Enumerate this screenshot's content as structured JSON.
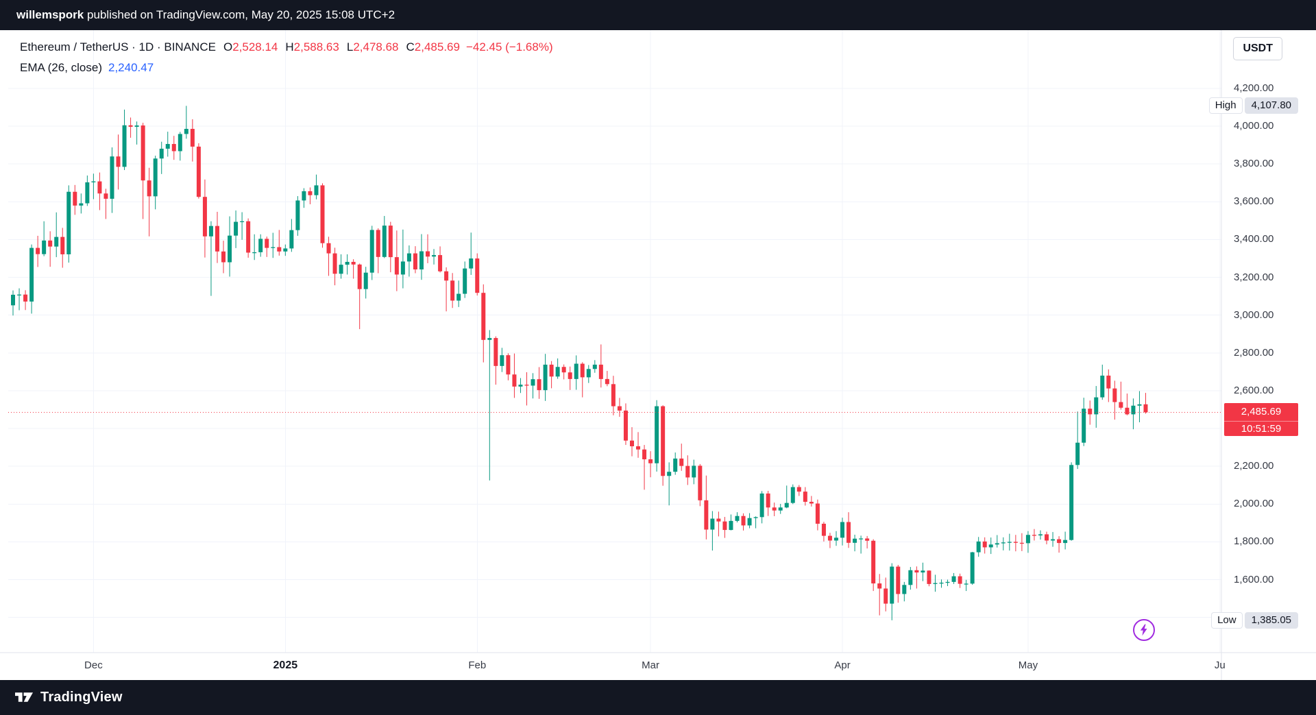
{
  "topbar": {
    "author": "willemspork",
    "rest": " published on TradingView.com, May 20, 2025 15:08 UTC+2"
  },
  "legend": {
    "title": "Ethereum / TetherUS · 1D · BINANCE",
    "ohlc": {
      "o_label": "O",
      "o": "2,528.14",
      "h_label": "H",
      "h": "2,588.63",
      "l_label": "L",
      "l": "2,478.68",
      "c_label": "C",
      "c": "2,485.69",
      "change": "−42.45 (−1.68%)"
    },
    "indicator": {
      "name": "EMA (26, close)",
      "value": "2,240.47"
    }
  },
  "currency_button": "USDT",
  "price_scale": {
    "ticks": [
      4200,
      4000,
      3800,
      3600,
      3400,
      3200,
      3000,
      2800,
      2600,
      2400,
      2200,
      2000,
      1800,
      1600,
      1400
    ],
    "hidden_tick_labels": [
      1400
    ],
    "high_label": "High",
    "high_value": "4,107.80",
    "low_label": "Low",
    "low_value": "1,385.05",
    "last_price": "2,485.69",
    "countdown": "10:51:59"
  },
  "time_scale": {
    "labels": [
      {
        "text": "Dec",
        "index": 13
      },
      {
        "text": "2025",
        "index": 44,
        "bold": true
      },
      {
        "text": "Feb",
        "index": 75
      },
      {
        "text": "Mar",
        "index": 103
      },
      {
        "text": "Apr",
        "index": 134
      },
      {
        "text": "May",
        "index": 164
      },
      {
        "text": "Ju",
        "index": 195
      }
    ]
  },
  "footer": {
    "brand": "TradingView"
  },
  "colors": {
    "up": "#089981",
    "down": "#f23645",
    "accent_blue": "#2962ff",
    "bar_bg": "#131722",
    "grid": "#f0f3fa",
    "separator": "#e0e3eb",
    "axis_text": "#363a45",
    "purple": "#a02be0"
  },
  "chart_data": {
    "type": "candlestick",
    "symbol": "Ethereum / TetherUS",
    "exchange": "BINANCE",
    "timeframe": "1D",
    "start_date": "2024-11-18",
    "end_date": "2025-05-20",
    "high": 4107.8,
    "low": 1385.05,
    "price_line": 2485.69,
    "last_ohlc": {
      "open": 2528.14,
      "high": 2588.63,
      "low": 2478.68,
      "close": 2485.69,
      "change": -42.45,
      "change_pct": -1.68
    },
    "ema_26": 2240.47,
    "y_axis_range": [
      1400,
      4200
    ],
    "grid": true,
    "ohlc": [
      [
        3052,
        3131,
        2998,
        3108
      ],
      [
        3108,
        3142,
        3026,
        3109
      ],
      [
        3109,
        3132,
        3027,
        3072
      ],
      [
        3072,
        3374,
        3008,
        3356
      ],
      [
        3356,
        3420,
        3255,
        3323
      ],
      [
        3323,
        3497,
        3312,
        3395
      ],
      [
        3395,
        3444,
        3256,
        3363
      ],
      [
        3363,
        3544,
        3307,
        3414
      ],
      [
        3414,
        3462,
        3251,
        3322
      ],
      [
        3322,
        3687,
        3278,
        3653
      ],
      [
        3653,
        3689,
        3531,
        3580
      ],
      [
        3580,
        3644,
        3538,
        3592
      ],
      [
        3592,
        3739,
        3578,
        3703
      ],
      [
        3703,
        3749,
        3614,
        3708
      ],
      [
        3708,
        3755,
        3556,
        3644
      ],
      [
        3644,
        3669,
        3509,
        3616
      ],
      [
        3616,
        3888,
        3541,
        3840
      ],
      [
        3840,
        3956,
        3665,
        3785
      ],
      [
        3785,
        4088,
        3768,
        4005
      ],
      [
        4005,
        4046,
        3939,
        3997
      ],
      [
        3997,
        4025,
        3903,
        4004
      ],
      [
        4004,
        4018,
        3509,
        3713
      ],
      [
        3713,
        3780,
        3417,
        3629
      ],
      [
        3629,
        3844,
        3560,
        3829
      ],
      [
        3829,
        3918,
        3747,
        3881
      ],
      [
        3881,
        3971,
        3839,
        3906
      ],
      [
        3906,
        3949,
        3822,
        3868
      ],
      [
        3868,
        3970,
        3818,
        3959
      ],
      [
        3959,
        4107.8,
        3934,
        3986
      ],
      [
        3986,
        4037,
        3813,
        3892
      ],
      [
        3892,
        3910,
        3617,
        3626
      ],
      [
        3626,
        3718,
        3305,
        3417
      ],
      [
        3417,
        3497,
        3102,
        3472
      ],
      [
        3472,
        3547,
        3276,
        3337
      ],
      [
        3337,
        3394,
        3222,
        3280
      ],
      [
        3280,
        3523,
        3204,
        3421
      ],
      [
        3421,
        3554,
        3355,
        3494
      ],
      [
        3494,
        3545,
        3399,
        3497
      ],
      [
        3497,
        3512,
        3304,
        3331
      ],
      [
        3331,
        3428,
        3292,
        3333
      ],
      [
        3333,
        3428,
        3309,
        3404
      ],
      [
        3404,
        3416,
        3308,
        3356
      ],
      [
        3356,
        3436,
        3303,
        3360
      ],
      [
        3360,
        3451,
        3315,
        3337
      ],
      [
        3337,
        3374,
        3314,
        3353
      ],
      [
        3353,
        3509,
        3335,
        3450
      ],
      [
        3450,
        3630,
        3420,
        3607
      ],
      [
        3607,
        3672,
        3568,
        3656
      ],
      [
        3656,
        3676,
        3587,
        3635
      ],
      [
        3635,
        3744,
        3613,
        3687
      ],
      [
        3687,
        3698,
        3357,
        3381
      ],
      [
        3381,
        3415,
        3208,
        3327
      ],
      [
        3327,
        3357,
        3158,
        3219
      ],
      [
        3219,
        3322,
        3193,
        3267
      ],
      [
        3267,
        3322,
        3215,
        3282
      ],
      [
        3282,
        3296,
        3193,
        3268
      ],
      [
        3268,
        3273,
        2926,
        3138
      ],
      [
        3138,
        3256,
        3088,
        3225
      ],
      [
        3225,
        3473,
        3186,
        3451
      ],
      [
        3451,
        3460,
        3222,
        3308
      ],
      [
        3308,
        3525,
        3302,
        3474
      ],
      [
        3474,
        3494,
        3227,
        3307
      ],
      [
        3307,
        3448,
        3127,
        3215
      ],
      [
        3215,
        3453,
        3142,
        3284
      ],
      [
        3284,
        3369,
        3204,
        3327
      ],
      [
        3327,
        3365,
        3222,
        3242
      ],
      [
        3242,
        3429,
        3187,
        3338
      ],
      [
        3338,
        3428,
        3275,
        3310
      ],
      [
        3310,
        3350,
        3268,
        3318
      ],
      [
        3318,
        3364,
        3226,
        3232
      ],
      [
        3232,
        3253,
        3020,
        3183
      ],
      [
        3183,
        3223,
        3038,
        3077
      ],
      [
        3077,
        3183,
        3043,
        3113
      ],
      [
        3113,
        3284,
        3091,
        3247
      ],
      [
        3247,
        3437,
        3213,
        3300
      ],
      [
        3300,
        3327,
        3104,
        3118
      ],
      [
        3118,
        3163,
        2750,
        2869
      ],
      [
        2869,
        2921,
        2125,
        2879
      ],
      [
        2879,
        2888,
        2632,
        2731
      ],
      [
        2731,
        2827,
        2699,
        2788
      ],
      [
        2788,
        2798,
        2655,
        2686
      ],
      [
        2686,
        2797,
        2562,
        2622
      ],
      [
        2622,
        2667,
        2588,
        2632
      ],
      [
        2632,
        2698,
        2522,
        2627
      ],
      [
        2627,
        2693,
        2559,
        2661
      ],
      [
        2661,
        2725,
        2557,
        2603
      ],
      [
        2603,
        2795,
        2546,
        2738
      ],
      [
        2738,
        2757,
        2613,
        2675
      ],
      [
        2675,
        2771,
        2663,
        2726
      ],
      [
        2726,
        2739,
        2660,
        2697
      ],
      [
        2697,
        2728,
        2604,
        2662
      ],
      [
        2662,
        2787,
        2605,
        2743
      ],
      [
        2743,
        2751,
        2565,
        2671
      ],
      [
        2671,
        2736,
        2641,
        2715
      ],
      [
        2715,
        2762,
        2695,
        2738
      ],
      [
        2738,
        2845,
        2617,
        2662
      ],
      [
        2662,
        2705,
        2624,
        2635
      ],
      [
        2635,
        2679,
        2470,
        2518
      ],
      [
        2518,
        2562,
        2462,
        2495
      ],
      [
        2495,
        2533,
        2313,
        2336
      ],
      [
        2336,
        2407,
        2253,
        2306
      ],
      [
        2306,
        2381,
        2245,
        2289
      ],
      [
        2289,
        2313,
        2076,
        2237
      ],
      [
        2237,
        2280,
        2142,
        2216
      ],
      [
        2216,
        2550,
        2172,
        2518
      ],
      [
        2518,
        2523,
        2097,
        2149
      ],
      [
        2149,
        2221,
        1993,
        2171
      ],
      [
        2171,
        2273,
        2155,
        2241
      ],
      [
        2241,
        2320,
        2176,
        2202
      ],
      [
        2202,
        2258,
        2101,
        2141
      ],
      [
        2141,
        2235,
        2105,
        2203
      ],
      [
        2203,
        2212,
        1989,
        2020
      ],
      [
        2020,
        2151,
        1813,
        1865
      ],
      [
        1865,
        1963,
        1754,
        1923
      ],
      [
        1923,
        1960,
        1829,
        1908
      ],
      [
        1908,
        1932,
        1821,
        1863
      ],
      [
        1863,
        1945,
        1861,
        1911
      ],
      [
        1911,
        1957,
        1903,
        1937
      ],
      [
        1937,
        1951,
        1860,
        1887
      ],
      [
        1887,
        1952,
        1872,
        1926
      ],
      [
        1926,
        1935,
        1872,
        1931
      ],
      [
        1931,
        2069,
        1898,
        2056
      ],
      [
        2056,
        2070,
        1937,
        1982
      ],
      [
        1982,
        2008,
        1936,
        1966
      ],
      [
        1966,
        2001,
        1948,
        1982
      ],
      [
        1982,
        2098,
        1978,
        2006
      ],
      [
        2006,
        2104,
        2000,
        2090
      ],
      [
        2090,
        2101,
        2043,
        2066
      ],
      [
        2066,
        2090,
        1992,
        2012
      ],
      [
        2012,
        2043,
        1987,
        2003
      ],
      [
        2003,
        2024,
        1861,
        1896
      ],
      [
        1896,
        1906,
        1802,
        1832
      ],
      [
        1832,
        1848,
        1767,
        1807
      ],
      [
        1807,
        1857,
        1779,
        1822
      ],
      [
        1822,
        1928,
        1781,
        1905
      ],
      [
        1905,
        1957,
        1768,
        1795
      ],
      [
        1795,
        1838,
        1750,
        1817
      ],
      [
        1817,
        1833,
        1738,
        1818
      ],
      [
        1818,
        1831,
        1765,
        1806
      ],
      [
        1806,
        1814,
        1540,
        1580
      ],
      [
        1580,
        1630,
        1411,
        1553
      ],
      [
        1553,
        1611,
        1432,
        1473
      ],
      [
        1473,
        1687,
        1385.05,
        1669
      ],
      [
        1669,
        1678,
        1478,
        1524
      ],
      [
        1524,
        1588,
        1485,
        1572
      ],
      [
        1572,
        1667,
        1547,
        1650
      ],
      [
        1650,
        1670,
        1553,
        1638
      ],
      [
        1638,
        1690,
        1592,
        1648
      ],
      [
        1648,
        1649,
        1565,
        1577
      ],
      [
        1577,
        1626,
        1536,
        1582
      ],
      [
        1582,
        1601,
        1557,
        1584
      ],
      [
        1584,
        1600,
        1566,
        1588
      ],
      [
        1588,
        1635,
        1577,
        1618
      ],
      [
        1618,
        1632,
        1556,
        1578
      ],
      [
        1578,
        1599,
        1540,
        1579
      ],
      [
        1579,
        1747,
        1573,
        1745
      ],
      [
        1745,
        1826,
        1721,
        1802
      ],
      [
        1802,
        1824,
        1738,
        1771
      ],
      [
        1771,
        1823,
        1736,
        1786
      ],
      [
        1786,
        1836,
        1770,
        1793
      ],
      [
        1793,
        1824,
        1755,
        1797
      ],
      [
        1797,
        1843,
        1754,
        1800
      ],
      [
        1800,
        1837,
        1750,
        1795
      ],
      [
        1795,
        1846,
        1751,
        1793
      ],
      [
        1793,
        1857,
        1742,
        1837
      ],
      [
        1837,
        1868,
        1807,
        1834
      ],
      [
        1834,
        1861,
        1812,
        1840
      ],
      [
        1840,
        1854,
        1787,
        1807
      ],
      [
        1807,
        1852,
        1774,
        1814
      ],
      [
        1814,
        1830,
        1743,
        1794
      ],
      [
        1794,
        1854,
        1760,
        1810
      ],
      [
        1810,
        2221,
        1806,
        2207
      ],
      [
        2207,
        2490,
        2186,
        2325
      ],
      [
        2325,
        2563,
        2307,
        2505
      ],
      [
        2505,
        2548,
        2420,
        2475
      ],
      [
        2475,
        2625,
        2404,
        2565
      ],
      [
        2565,
        2738,
        2552,
        2680
      ],
      [
        2680,
        2713,
        2540,
        2612
      ],
      [
        2612,
        2653,
        2447,
        2540
      ],
      [
        2540,
        2648,
        2500,
        2510
      ],
      [
        2510,
        2585,
        2470,
        2475
      ],
      [
        2475,
        2559,
        2396,
        2521
      ],
      [
        2521,
        2598,
        2433,
        2528
      ],
      [
        2528.14,
        2588.63,
        2478.68,
        2485.69
      ]
    ]
  }
}
